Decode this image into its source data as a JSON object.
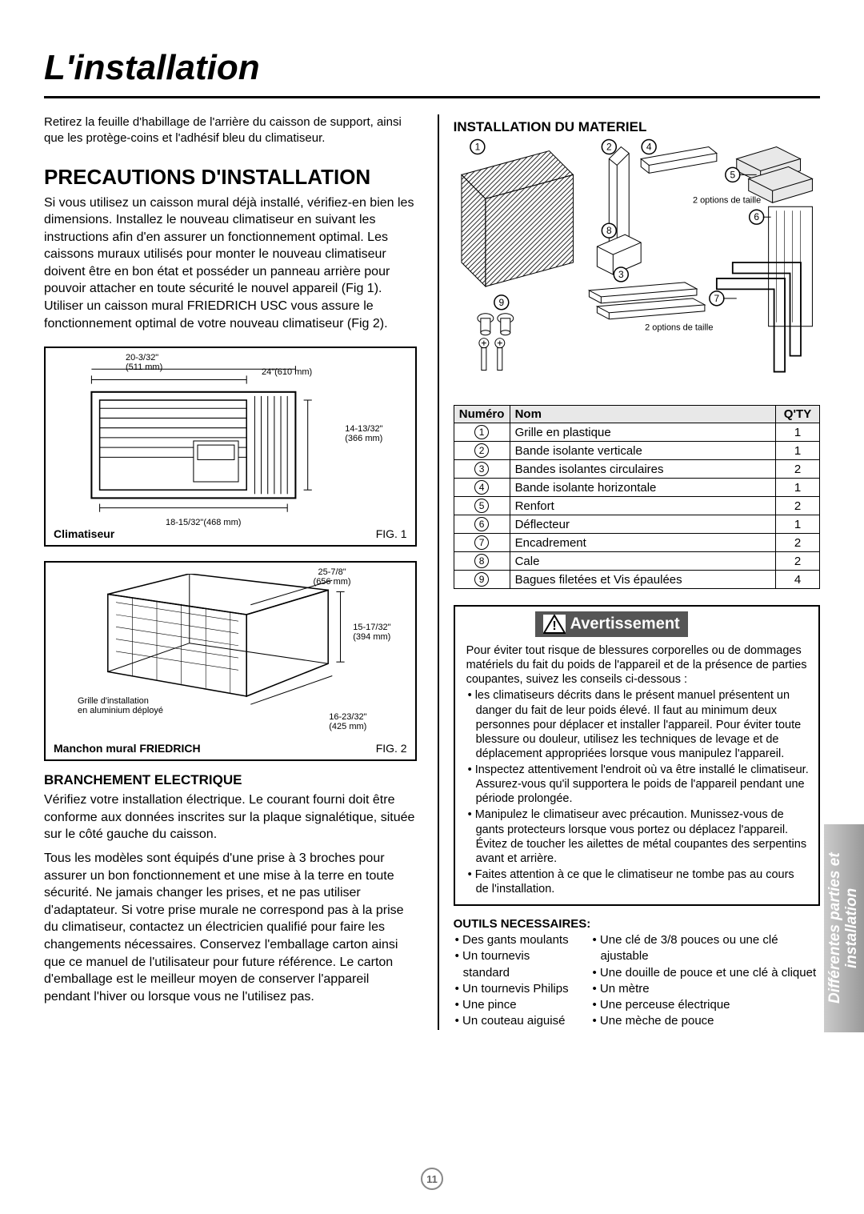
{
  "title": "L'installation",
  "intro": "Retirez la feuille d'habillage de l'arrière du caisson de support, ainsi que les protège-coins et l'adhésif bleu du climatiseur.",
  "precautions": {
    "heading": "PRECAUTIONS D'INSTALLATION",
    "text": "Si vous utilisez un caisson mural déjà installé, vérifiez-en bien les dimensions. Installez le nouveau climatiseur en suivant les instructions afin d'en assurer un fonctionnement optimal. Les caissons muraux utilisés pour monter le nouveau climatiseur doivent être en bon état et posséder un panneau arrière pour pouvoir attacher en toute sécurité le nouvel appareil (Fig 1). Utiliser un caisson mural FRIEDRICH USC vous assure le fonctionnement optimal de votre nouveau climatiseur (Fig 2)."
  },
  "fig1": {
    "label_left": "Climatiseur",
    "label_right": "FIG. 1",
    "dims": {
      "top_left": "20-3/32\"",
      "top_left_mm": "(511 mm)",
      "top_right": "24\"(610 mm)",
      "right": "14-13/32\"",
      "right_mm": "(366 mm)",
      "bottom": "18-15/32\"(468 mm)"
    }
  },
  "fig2": {
    "label_left": "Manchon mural FRIEDRICH",
    "label_right": "FIG. 2",
    "dims": {
      "top": "25-7/8\"",
      "top_mm": "(656 mm)",
      "right": "15-17/32\"",
      "right_mm": "(394 mm)",
      "bottom": "16-23/32\"",
      "bottom_mm": "(425 mm)",
      "grille": "Grille d'installation",
      "grille2": "en aluminium déployé"
    }
  },
  "electrical": {
    "heading": "BRANCHEMENT ELECTRIQUE",
    "p1": "Vérifiez votre installation électrique. Le courant fourni doit être conforme aux données inscrites sur la plaque signalétique, située sur le côté gauche du caisson.",
    "p2": "Tous les modèles sont équipés d'une prise à 3 broches pour assurer un bon fonctionnement et une mise à la terre en toute sécurité. Ne jamais changer les prises, et ne pas utiliser d'adaptateur. Si votre prise murale ne correspond pas à la prise du climatiseur, contactez un électricien qualifié pour faire les changements nécessaires. Conservez l'emballage carton ainsi que ce manuel de l'utilisateur pour future référence. Le carton d'emballage est le meilleur moyen de conserver l'appareil pendant l'hiver ou lorsque vous ne l'utilisez pas."
  },
  "hardware": {
    "heading": "INSTALLATION DU MATERIEL",
    "size_note": "2 options de taille",
    "table": {
      "headers": {
        "num": "Numéro",
        "name": "Nom",
        "qty": "Q'TY"
      },
      "rows": [
        {
          "n": "1",
          "name": "Grille en plastique",
          "qty": "1"
        },
        {
          "n": "2",
          "name": "Bande isolante verticale",
          "qty": "1"
        },
        {
          "n": "3",
          "name": "Bandes isolantes circulaires",
          "qty": "2"
        },
        {
          "n": "4",
          "name": "Bande isolante horizontale",
          "qty": "1"
        },
        {
          "n": "5",
          "name": "Renfort",
          "qty": "2"
        },
        {
          "n": "6",
          "name": "Déflecteur",
          "qty": "1"
        },
        {
          "n": "7",
          "name": "Encadrement",
          "qty": "2"
        },
        {
          "n": "8",
          "name": "Cale",
          "qty": "2"
        },
        {
          "n": "9",
          "name": "Bagues filetées et Vis épaulées",
          "qty": "4"
        }
      ]
    }
  },
  "warning": {
    "title": "Avertissement",
    "intro": "Pour éviter tout risque de blessures corporelles ou de dommages matériels du fait du poids de l'appareil et de la présence de parties coupantes, suivez les conseils ci-dessous :",
    "items": [
      "les climatiseurs décrits dans le présent manuel présentent un danger du fait de leur poids élevé. Il faut au minimum deux personnes pour déplacer et installer l'appareil. Pour éviter toute blessure ou douleur, utilisez les techniques de levage et de déplacement appropriées lorsque vous manipulez l'appareil.",
      "Inspectez attentivement l'endroit où va être installé le climatiseur. Assurez-vous qu'il supportera le poids de l'appareil pendant une période prolongée.",
      "Manipulez le climatiseur avec précaution. Munissez-vous de gants protecteurs lorsque vous portez ou déplacez l'appareil. Évitez de toucher les ailettes de métal coupantes des serpentins avant et arrière.",
      "Faites attention à ce que le climatiseur ne tombe pas au cours de l'installation."
    ]
  },
  "tools": {
    "heading": "OUTILS NECESSAIRES:",
    "left": [
      "Des gants moulants",
      "Un tournevis standard",
      "Un tournevis Philips",
      "Une pince",
      "Un couteau aiguisé"
    ],
    "right": [
      "Une clé de 3/8 pouces ou une clé ajustable",
      "Une douille de pouce et une clé à cliquet",
      "Un mètre",
      "Une perceuse électrique",
      "Une mèche de pouce"
    ]
  },
  "side_tab": {
    "line1": "Différentes parties et",
    "line2": "installation"
  },
  "page_number": "11",
  "colors": {
    "sidebar_start": "#999999",
    "sidebar_end": "#cccccc",
    "warning_header_bg": "#555555",
    "table_header_bg": "#e8e8e8",
    "page_num_border": "#888888"
  }
}
